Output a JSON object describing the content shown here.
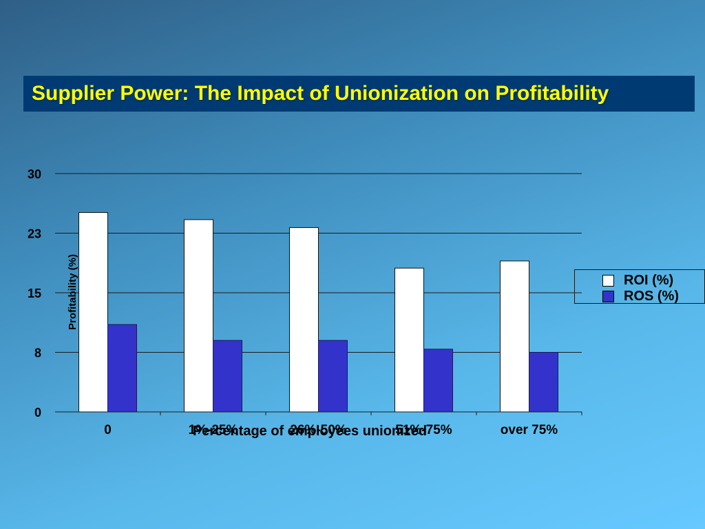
{
  "slide": {
    "title": "Supplier Power: The Impact of Unionization on Profitability"
  },
  "colors": {
    "title_bg": "#003a73",
    "title_text": "#ffff00",
    "roi_bar": "#ffffff",
    "ros_bar": "#3333cc"
  },
  "chart_data": {
    "type": "bar",
    "title": "",
    "xlabel": "Percentage of employees unionized",
    "ylabel": "Profitability (%)",
    "ylim": [
      0,
      30
    ],
    "yticks": [
      "0",
      "8",
      "15",
      "23",
      "30"
    ],
    "ytick_values": [
      0,
      7.5,
      15,
      22.5,
      30
    ],
    "categories": [
      "0",
      "1%-25%",
      "26%-50%",
      "51%-75%",
      "over 75%"
    ],
    "series": [
      {
        "name": "ROI (%)",
        "color": "#ffffff",
        "values": [
          25.1,
          24.2,
          23.2,
          18.1,
          19.0
        ]
      },
      {
        "name": "ROS (%)",
        "color": "#3333cc",
        "values": [
          11.0,
          9.0,
          9.0,
          7.9,
          7.5
        ]
      }
    ],
    "grid": true,
    "legend_position": "right"
  }
}
